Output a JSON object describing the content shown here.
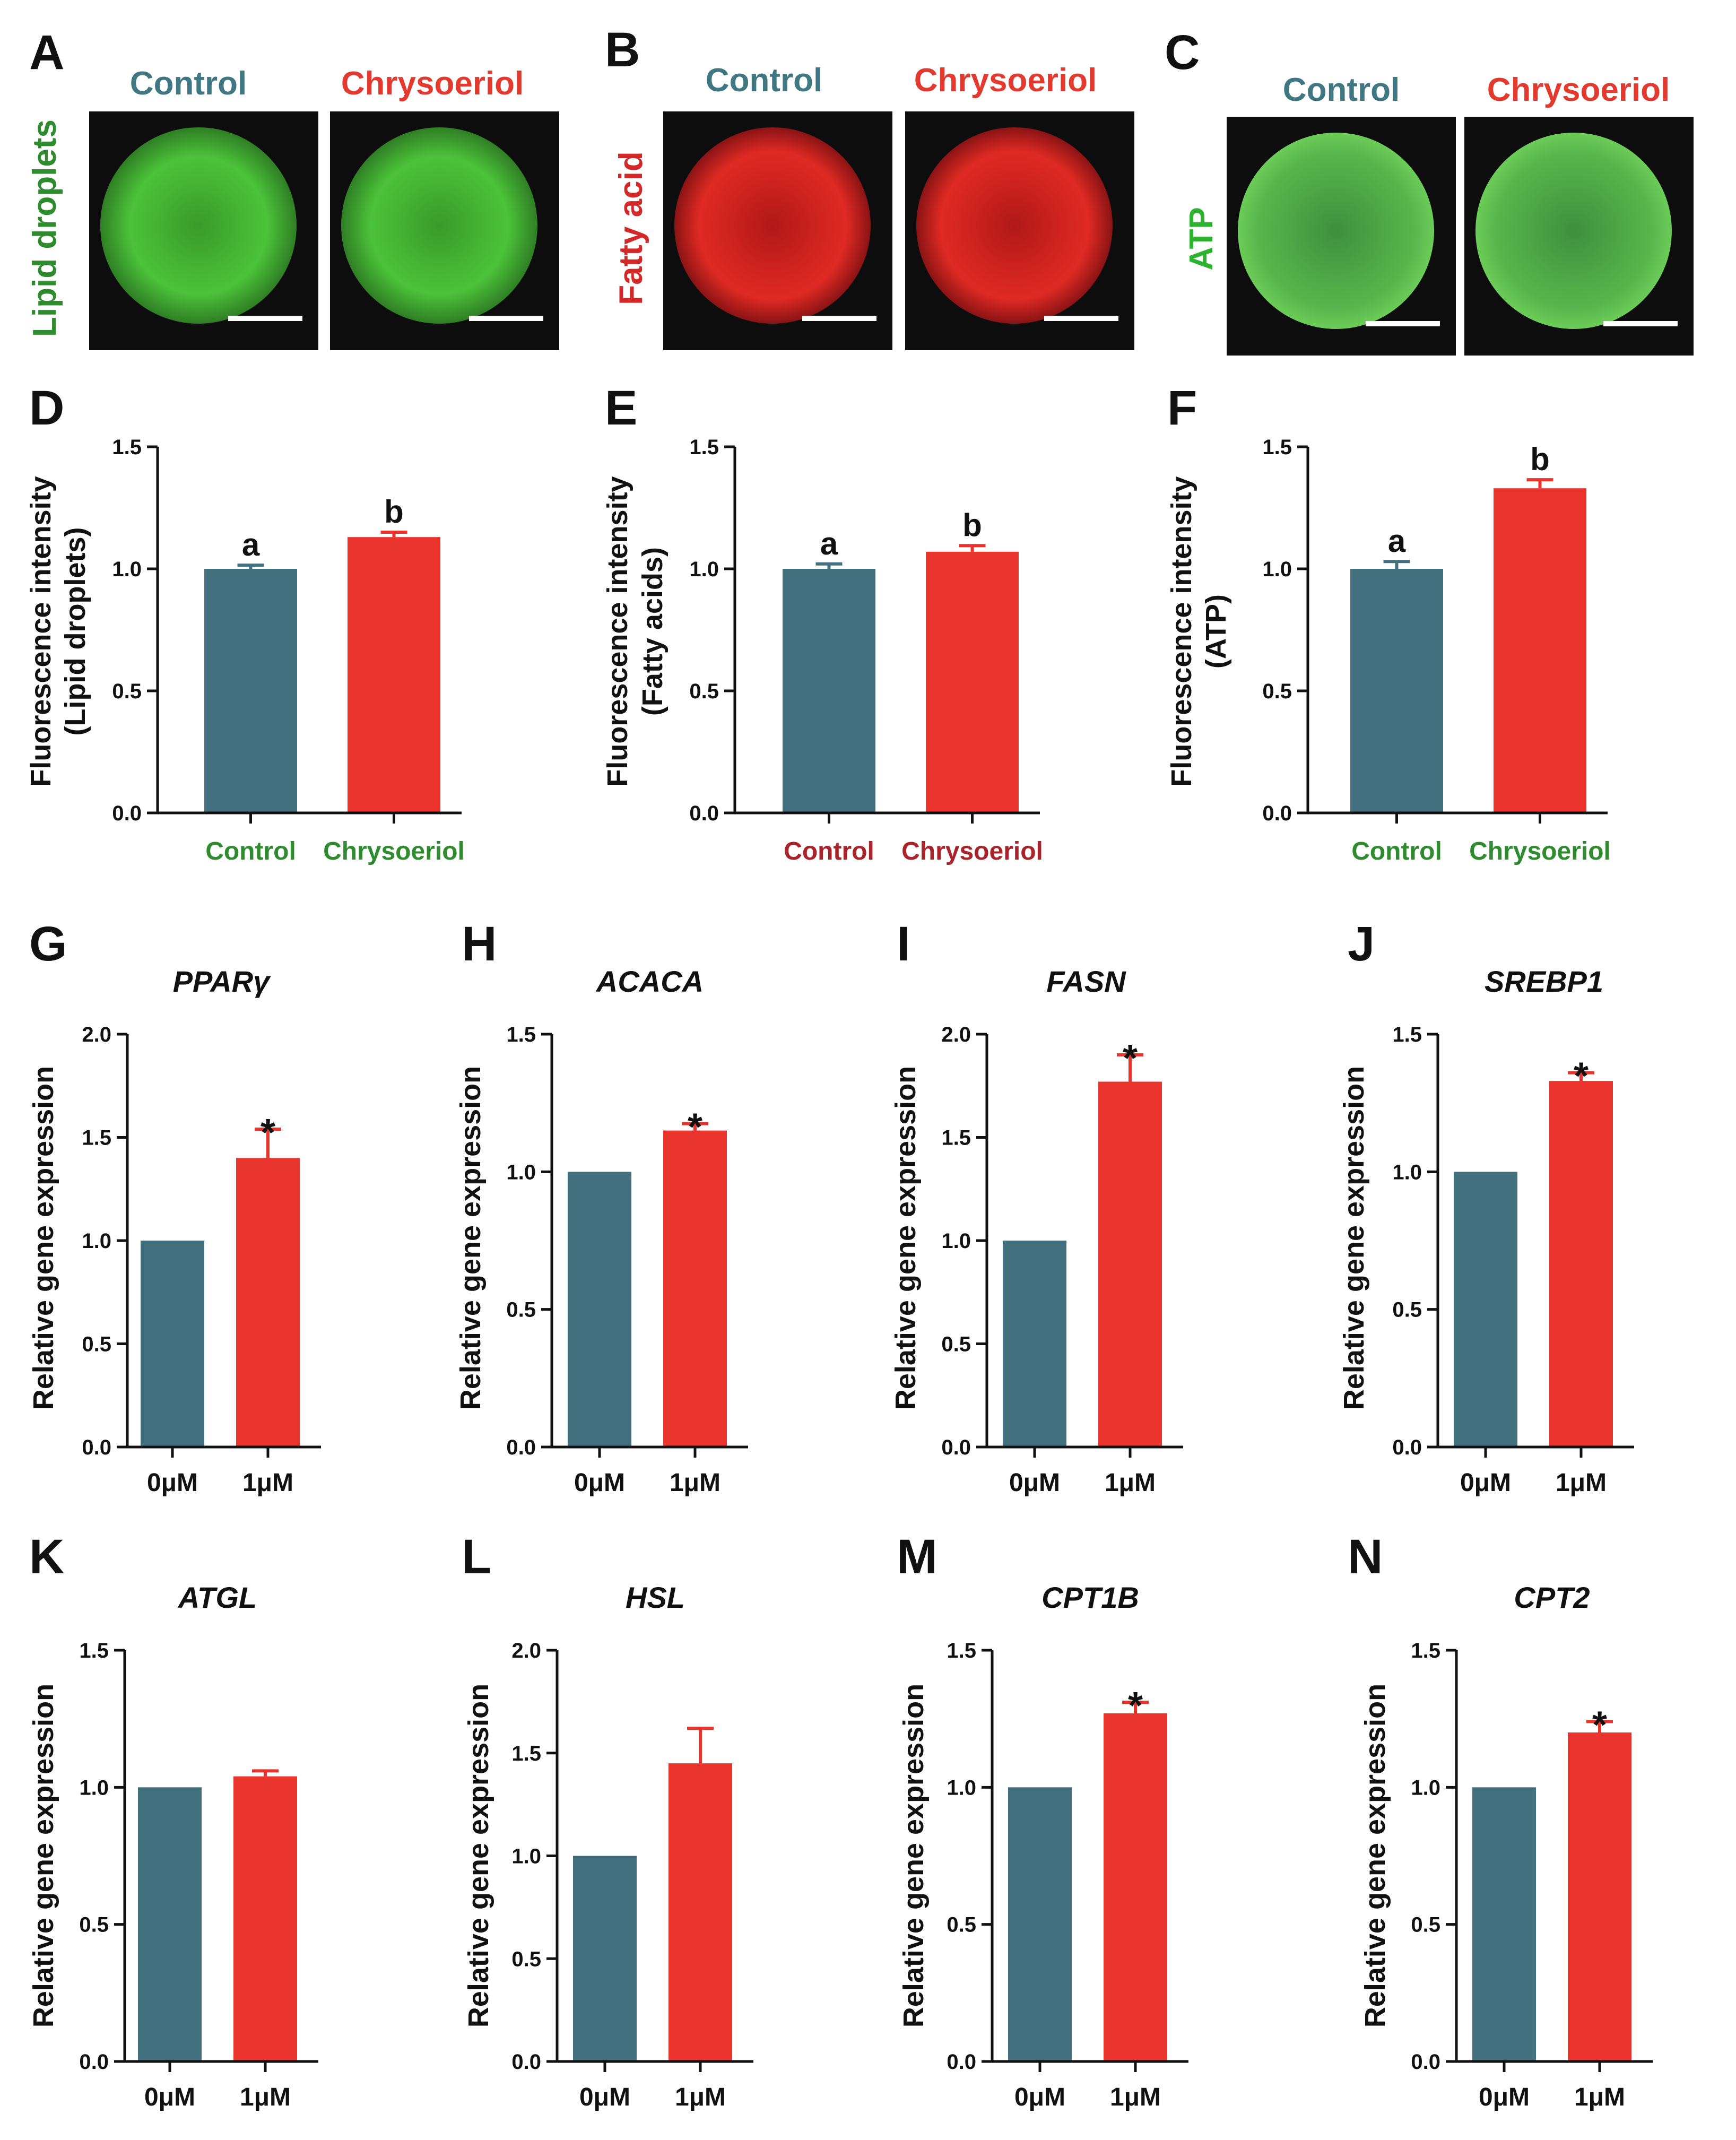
{
  "colors": {
    "control": "#43707f",
    "treated": "#e8342c",
    "green_label": "#2e8b2e",
    "red_label": "#a8232a",
    "ctrl_title": "#3f7782",
    "chry_title": "#e23a2f"
  },
  "micro": [
    {
      "panel": "A",
      "ylabel": "Lipid droplets",
      "ylabel_color": "#2e8b2e",
      "control_label": "Control",
      "treated_label": "Chrysoeriol",
      "stain": "green"
    },
    {
      "panel": "B",
      "ylabel": "Fatty acid",
      "ylabel_color": "#d22828",
      "control_label": "Control",
      "treated_label": "Chrysoeriol",
      "stain": "red"
    },
    {
      "panel": "C",
      "ylabel": "ATP",
      "ylabel_color": "#2fb22f",
      "control_label": "Control",
      "treated_label": "Chrysoeriol",
      "stain": "atp"
    }
  ],
  "chart_data": [
    {
      "panel": "D",
      "type": "bar",
      "title": "",
      "ylabel": [
        "Fluorescence intensity",
        "(Lipid droplets)"
      ],
      "categories": [
        "Control",
        "Chrysoeriol"
      ],
      "values": [
        1.0,
        1.13
      ],
      "errors": [
        0.015,
        0.02
      ],
      "annotations": [
        "a",
        "b"
      ],
      "ylim": [
        0,
        1.5
      ],
      "yticks": [
        "0.0",
        "0.5",
        "1.0",
        "1.5"
      ],
      "cat_color": "#2e8b2e"
    },
    {
      "panel": "E",
      "type": "bar",
      "title": "",
      "ylabel": [
        "Fluorescence intensity",
        "(Fatty acids)"
      ],
      "categories": [
        "Control",
        "Chrysoeriol"
      ],
      "values": [
        1.0,
        1.07
      ],
      "errors": [
        0.02,
        0.025
      ],
      "annotations": [
        "a",
        "b"
      ],
      "ylim": [
        0,
        1.5
      ],
      "yticks": [
        "0.0",
        "0.5",
        "1.0",
        "1.5"
      ],
      "cat_color": "#a8232a"
    },
    {
      "panel": "F",
      "type": "bar",
      "title": "",
      "ylabel": [
        "Fluorescence intensity",
        "(ATP)"
      ],
      "categories": [
        "Control",
        "Chrysoeriol"
      ],
      "values": [
        1.0,
        1.33
      ],
      "errors": [
        0.03,
        0.035
      ],
      "annotations": [
        "a",
        "b"
      ],
      "ylim": [
        0,
        1.5
      ],
      "yticks": [
        "0.0",
        "0.5",
        "1.0",
        "1.5"
      ],
      "cat_color": "#2e8b2e"
    },
    {
      "panel": "G",
      "type": "bar",
      "title": "PPARγ",
      "ylabel": [
        "Relative gene expression"
      ],
      "categories": [
        "0μM",
        "1μM"
      ],
      "values": [
        1.0,
        1.4
      ],
      "errors": [
        0,
        0.14
      ],
      "annotations": [
        "",
        "*"
      ],
      "ylim": [
        0,
        2.0
      ],
      "yticks": [
        "0.0",
        "0.5",
        "1.0",
        "1.5",
        "2.0"
      ],
      "cat_color": "#111111"
    },
    {
      "panel": "H",
      "type": "bar",
      "title": "ACACA",
      "ylabel": [
        "Relative gene expression"
      ],
      "categories": [
        "0μM",
        "1μM"
      ],
      "values": [
        1.0,
        1.15
      ],
      "errors": [
        0,
        0.025
      ],
      "annotations": [
        "",
        "*"
      ],
      "ylim": [
        0,
        1.5
      ],
      "yticks": [
        "0.0",
        "0.5",
        "1.0",
        "1.5"
      ],
      "cat_color": "#111111"
    },
    {
      "panel": "I",
      "type": "bar",
      "title": "FASN",
      "ylabel": [
        "Relative gene expression"
      ],
      "categories": [
        "0μM",
        "1μM"
      ],
      "values": [
        1.0,
        1.77
      ],
      "errors": [
        0,
        0.13
      ],
      "annotations": [
        "",
        "*"
      ],
      "ylim": [
        0,
        2.0
      ],
      "yticks": [
        "0.0",
        "0.5",
        "1.0",
        "1.5",
        "2.0"
      ],
      "cat_color": "#111111"
    },
    {
      "panel": "J",
      "type": "bar",
      "title": "SREBP1",
      "ylabel": [
        "Relative gene expression"
      ],
      "categories": [
        "0μM",
        "1μM"
      ],
      "values": [
        1.0,
        1.33
      ],
      "errors": [
        0,
        0.03
      ],
      "annotations": [
        "",
        "*"
      ],
      "ylim": [
        0,
        1.5
      ],
      "yticks": [
        "0.0",
        "0.5",
        "1.0",
        "1.5"
      ],
      "cat_color": "#111111"
    },
    {
      "panel": "K",
      "type": "bar",
      "title": "ATGL",
      "ylabel": [
        "Relative gene expression"
      ],
      "categories": [
        "0μM",
        "1μM"
      ],
      "values": [
        1.0,
        1.04
      ],
      "errors": [
        0,
        0.02
      ],
      "annotations": [
        "",
        ""
      ],
      "ylim": [
        0,
        1.5
      ],
      "yticks": [
        "0.0",
        "0.5",
        "1.0",
        "1.5"
      ],
      "cat_color": "#111111"
    },
    {
      "panel": "L",
      "type": "bar",
      "title": "HSL",
      "ylabel": [
        "Relative gene expression"
      ],
      "categories": [
        "0μM",
        "1μM"
      ],
      "values": [
        1.0,
        1.45
      ],
      "errors": [
        0,
        0.17
      ],
      "annotations": [
        "",
        ""
      ],
      "ylim": [
        0,
        2.0
      ],
      "yticks": [
        "0.0",
        "0.5",
        "1.0",
        "1.5",
        "2.0"
      ],
      "cat_color": "#111111"
    },
    {
      "panel": "M",
      "type": "bar",
      "title": "CPT1B",
      "ylabel": [
        "Relative gene expression"
      ],
      "categories": [
        "0μM",
        "1μM"
      ],
      "values": [
        1.0,
        1.27
      ],
      "errors": [
        0,
        0.04
      ],
      "annotations": [
        "",
        "*"
      ],
      "ylim": [
        0,
        1.5
      ],
      "yticks": [
        "0.0",
        "0.5",
        "1.0",
        "1.5"
      ],
      "cat_color": "#111111"
    },
    {
      "panel": "N",
      "type": "bar",
      "title": "CPT2",
      "ylabel": [
        "Relative gene expression"
      ],
      "categories": [
        "0μM",
        "1μM"
      ],
      "values": [
        1.0,
        1.2
      ],
      "errors": [
        0,
        0.04
      ],
      "annotations": [
        "",
        "*"
      ],
      "ylim": [
        0,
        1.5
      ],
      "yticks": [
        "0.0",
        "0.5",
        "1.0",
        "1.5"
      ],
      "cat_color": "#111111"
    }
  ]
}
